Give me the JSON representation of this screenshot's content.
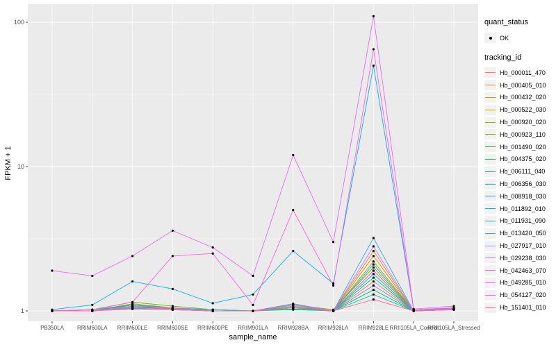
{
  "figure": {
    "ylabel": "FPKM + 1",
    "xlabel": "sample_name"
  },
  "legend": {
    "quant_status_title": "quant_status",
    "quant_status_items": [
      {
        "label": "OK",
        "icon": "point-icon"
      }
    ],
    "tracking_id_title": "tracking_id"
  },
  "colors": {
    "panel_background": "#EBEBEB",
    "gridline_major": "#FFFFFF",
    "gridline_minor": "#F7F7F7",
    "tick_text": "#4D4D4D",
    "point": "#000000"
  },
  "chart_data": {
    "type": "line",
    "title": "",
    "xlabel": "sample_name",
    "ylabel": "FPKM + 1",
    "y_scale": "log10",
    "ylim": [
      0.85,
      133
    ],
    "grid": true,
    "legend_position": "right",
    "y_tick_values": [
      1,
      10,
      100
    ],
    "y_tick_labels": [
      "1",
      "10",
      "100"
    ],
    "x_categories": [
      "PB350LA",
      "RRIM600LA",
      "RRIM600LE",
      "RRIM600SE",
      "RRIM600PE",
      "RRIM901LA",
      "RRIM928BA",
      "RRIM928LA",
      "RRIM928LE",
      "RRII105LA_Control",
      "RRII105LA_Stressed"
    ],
    "point_color": "#000000",
    "series": [
      {
        "name": "Hb_000011_470",
        "color": "#F8766D",
        "values": [
          1.0,
          1.0,
          1.05,
          1.03,
          1.0,
          1.0,
          1.05,
          1.0,
          1.6,
          1.0,
          1.04
        ]
      },
      {
        "name": "Hb_000405_010",
        "color": "#EA8331",
        "values": [
          1.0,
          1.0,
          1.06,
          1.02,
          1.0,
          1.0,
          1.1,
          1.0,
          2.6,
          1.0,
          1.03
        ]
      },
      {
        "name": "Hb_000432_020",
        "color": "#D89000",
        "values": [
          1.0,
          1.0,
          1.08,
          1.04,
          1.0,
          1.0,
          1.06,
          1.0,
          2.4,
          1.0,
          1.04
        ]
      },
      {
        "name": "Hb_000522_030",
        "color": "#C09B00",
        "values": [
          1.0,
          1.0,
          1.1,
          1.03,
          1.02,
          1.0,
          1.08,
          1.0,
          2.2,
          1.0,
          1.02
        ]
      },
      {
        "name": "Hb_000920_020",
        "color": "#A3A500",
        "values": [
          1.0,
          1.0,
          1.12,
          1.05,
          1.0,
          1.0,
          1.05,
          1.0,
          1.9,
          1.0,
          1.03
        ]
      },
      {
        "name": "Hb_000923_110",
        "color": "#7CAE00",
        "values": [
          1.0,
          1.02,
          1.15,
          1.08,
          1.02,
          1.0,
          1.1,
          1.02,
          2.0,
          1.0,
          1.05
        ]
      },
      {
        "name": "Hb_001490_020",
        "color": "#39B600",
        "values": [
          1.0,
          1.0,
          1.1,
          1.05,
          1.0,
          1.0,
          1.05,
          1.0,
          1.5,
          1.0,
          1.02
        ]
      },
      {
        "name": "Hb_004375_020",
        "color": "#00BB4E",
        "values": [
          1.0,
          1.0,
          1.08,
          1.02,
          1.0,
          1.0,
          1.03,
          1.0,
          1.4,
          1.0,
          1.02
        ]
      },
      {
        "name": "Hb_006111_040",
        "color": "#00BF7D",
        "values": [
          1.0,
          1.0,
          1.05,
          1.02,
          1.0,
          1.0,
          1.05,
          1.0,
          1.7,
          1.0,
          1.03
        ]
      },
      {
        "name": "Hb_006356_030",
        "color": "#00C1A3",
        "values": [
          1.0,
          1.0,
          1.04,
          1.02,
          1.0,
          1.0,
          1.02,
          1.0,
          1.3,
          1.0,
          1.02
        ]
      },
      {
        "name": "Hb_008918_030",
        "color": "#00BFC4",
        "values": [
          1.0,
          1.0,
          1.05,
          1.03,
          1.0,
          1.0,
          1.06,
          1.0,
          1.8,
          1.0,
          1.03
        ]
      },
      {
        "name": "Hb_011892_010",
        "color": "#00BAE0",
        "values": [
          1.0,
          1.02,
          1.1,
          1.05,
          1.02,
          1.0,
          1.1,
          1.0,
          2.1,
          1.0,
          1.05
        ]
      },
      {
        "name": "Hb_011931_090",
        "color": "#00B0F6",
        "values": [
          1.02,
          1.1,
          1.6,
          1.42,
          1.13,
          1.3,
          2.6,
          1.55,
          50,
          1.02,
          1.05
        ]
      },
      {
        "name": "Hb_013420_050",
        "color": "#35A2FF",
        "values": [
          1.0,
          1.0,
          1.06,
          1.03,
          1.0,
          1.0,
          1.12,
          1.0,
          3.2,
          1.0,
          1.03
        ]
      },
      {
        "name": "Hb_027917_010",
        "color": "#9590FF",
        "values": [
          1.0,
          1.0,
          1.05,
          1.02,
          1.0,
          1.0,
          1.05,
          1.0,
          1.5,
          1.0,
          1.02
        ]
      },
      {
        "name": "Hb_029238_030",
        "color": "#C77CFF",
        "values": [
          1.0,
          1.0,
          1.08,
          1.05,
          1.0,
          1.0,
          1.1,
          1.0,
          2.8,
          1.0,
          1.04
        ]
      },
      {
        "name": "Hb_042463_070",
        "color": "#E76BF3",
        "values": [
          1.9,
          1.75,
          2.4,
          3.6,
          2.75,
          1.75,
          12,
          3.0,
          110,
          1.03,
          1.08
        ]
      },
      {
        "name": "Hb_049285_010",
        "color": "#FA62DB",
        "values": [
          1.0,
          1.02,
          1.15,
          2.4,
          2.5,
          1.1,
          5.0,
          1.5,
          65,
          1.02,
          1.05
        ]
      },
      {
        "name": "Hb_054127_020",
        "color": "#FF62BC",
        "values": [
          1.0,
          1.0,
          1.05,
          1.03,
          1.0,
          1.0,
          1.1,
          1.0,
          1.9,
          1.0,
          1.03
        ]
      },
      {
        "name": "Hb_151401_010",
        "color": "#FF6A98",
        "values": [
          1.0,
          1.0,
          1.03,
          1.02,
          1.0,
          1.0,
          1.05,
          1.0,
          1.2,
          1.0,
          1.02
        ]
      }
    ]
  }
}
